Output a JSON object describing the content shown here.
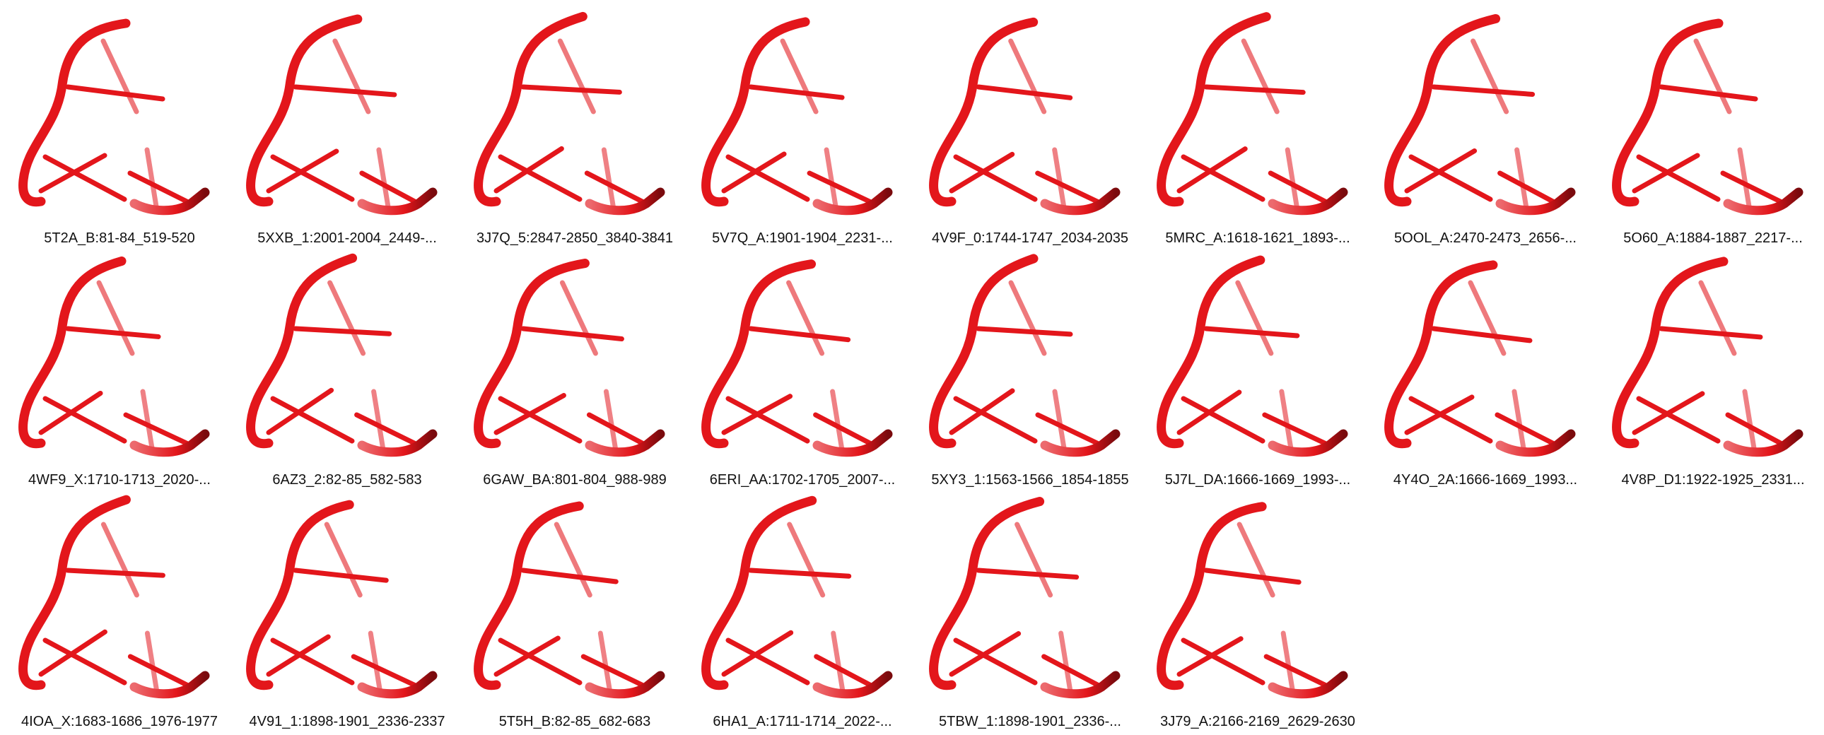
{
  "colors": {
    "strand_main": "#e3161b",
    "strand_light": "#ec6a6e",
    "strand_dark": "#7a0a0d",
    "background": "#ffffff"
  },
  "motif_icon": "rna-3d-structure-icon",
  "motifs": [
    {
      "label": "5T2A_B:81-84_519-520"
    },
    {
      "label": "5XXB_1:2001-2004_2449-..."
    },
    {
      "label": "3J7Q_5:2847-2850_3840-3841"
    },
    {
      "label": "5V7Q_A:1901-1904_2231-..."
    },
    {
      "label": "4V9F_0:1744-1747_2034-2035"
    },
    {
      "label": "5MRC_A:1618-1621_1893-..."
    },
    {
      "label": "5OOL_A:2470-2473_2656-..."
    },
    {
      "label": "5O60_A:1884-1887_2217-..."
    },
    {
      "label": "4WF9_X:1710-1713_2020-..."
    },
    {
      "label": "6AZ3_2:82-85_582-583"
    },
    {
      "label": "6GAW_BA:801-804_988-989"
    },
    {
      "label": "6ERI_AA:1702-1705_2007-..."
    },
    {
      "label": "5XY3_1:1563-1566_1854-1855"
    },
    {
      "label": "5J7L_DA:1666-1669_1993-..."
    },
    {
      "label": "4Y4O_2A:1666-1669_1993..."
    },
    {
      "label": "4V8P_D1:1922-1925_2331..."
    },
    {
      "label": "4IOA_X:1683-1686_1976-1977"
    },
    {
      "label": "4V91_1:1898-1901_2336-2337"
    },
    {
      "label": "5T5H_B:82-85_682-683"
    },
    {
      "label": "6HA1_A:1711-1714_2022-..."
    },
    {
      "label": "5TBW_1:1898-1901_2336-..."
    },
    {
      "label": "3J79_A:2166-2169_2629-2630"
    }
  ]
}
